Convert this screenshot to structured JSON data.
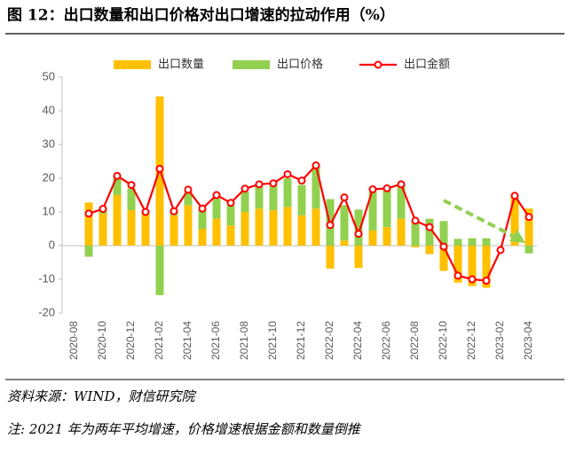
{
  "chart_data": {
    "type": "bar",
    "title": "图 12：出口数量和出口价格对出口增速的拉动作用（%）",
    "categories": [
      "2020-08",
      null,
      "2020-10",
      null,
      "2020-12",
      null,
      "2021-02",
      null,
      "2021-04",
      null,
      "2021-06",
      null,
      "2021-08",
      null,
      "2021-10",
      null,
      "2021-12",
      null,
      "2022-02",
      null,
      "2022-04",
      null,
      "2022-06",
      null,
      "2022-08",
      null,
      "2022-10",
      null,
      "2022-12",
      null,
      "2023-02",
      null,
      "2023-04"
    ],
    "series": [
      {
        "name": "出口数量",
        "color": "#FFC000",
        "type": "bar",
        "values": [
          null,
          12.8,
          9.5,
          15,
          10.5,
          10,
          44.3,
          9,
          12,
          5,
          8,
          6,
          10,
          11,
          10.5,
          11.5,
          9,
          11,
          -6.8,
          1.5,
          -6.6,
          4.5,
          5.5,
          8,
          -0.5,
          -2.5,
          -7.5,
          -11,
          -12,
          -12.5,
          null,
          14,
          11
        ]
      },
      {
        "name": "出口价格",
        "color": "#92D050",
        "type": "bar",
        "values": [
          null,
          -3.3,
          1.4,
          5.5,
          6.5,
          0.3,
          -14.7,
          1.5,
          4,
          5.5,
          6,
          6,
          6,
          7,
          7.5,
          8.5,
          9,
          13,
          13.8,
          10.5,
          10.7,
          11.5,
          11.3,
          10,
          7.5,
          8,
          7.3,
          2,
          2.2,
          2.2,
          null,
          1,
          -2.3
        ]
      },
      {
        "name": "出口金额",
        "color": "#FF0000",
        "type": "line",
        "values": [
          null,
          9.5,
          10.9,
          20.7,
          18,
          10,
          22.8,
          10.2,
          16.6,
          11,
          15,
          12.7,
          16.9,
          18.2,
          18.5,
          21.2,
          19.3,
          23.8,
          6.1,
          14.3,
          3.5,
          16.7,
          17,
          18.2,
          7.4,
          5.5,
          -0.3,
          -8.9,
          -10,
          -10.4,
          -1.3,
          14.8,
          8.5
        ]
      }
    ],
    "ylim": [
      -20,
      50
    ],
    "yticks": [
      -20,
      -10,
      0,
      10,
      20,
      30,
      40,
      50
    ],
    "grid": false,
    "legend": "top"
  },
  "source": "资料来源：WIND，财信研究院",
  "note": "注: 2021 年为两年平均增速，价格增速根据金额和数量倒推"
}
